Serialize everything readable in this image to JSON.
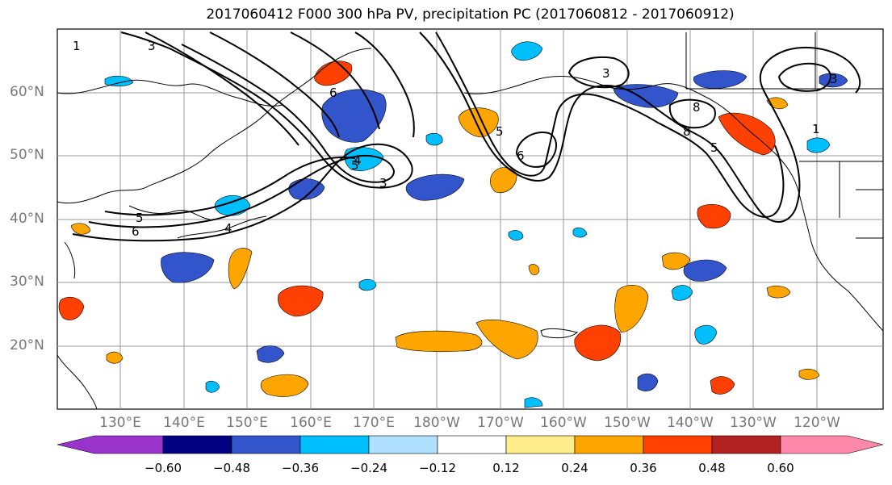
{
  "title": "2017060412 F000 300 hPa PV, precipitation PC (2017060812 - 2017060912)",
  "latitude_labels": [
    "60°N",
    "50°N",
    "40°N",
    "30°N",
    "20°N"
  ],
  "longitude_labels": [
    "130°E",
    "140°E",
    "150°E",
    "160°E",
    "170°E",
    "180°W",
    "170°W",
    "160°W",
    "150°W",
    "140°W",
    "130°W",
    "120°W"
  ],
  "colorbar": {
    "colors": [
      "#9933cc",
      "#000080",
      "#3355cc",
      "#00bfff",
      "#b0e0ff",
      "#ffffff",
      "#ffec8b",
      "#ffa500",
      "#ff4000",
      "#b22222",
      "#ff88aa"
    ],
    "tick_labels": [
      "−0.60",
      "−0.48",
      "−0.36",
      "−0.24",
      "−0.12",
      "0.12",
      "0.24",
      "0.36",
      "0.48",
      "0.60"
    ]
  },
  "contour_labels": [
    "3",
    "1",
    "6",
    "4",
    "5",
    "6",
    "5",
    "4",
    "3",
    "5",
    "6",
    "3",
    "8",
    "8",
    "5",
    "1",
    "3"
  ]
}
